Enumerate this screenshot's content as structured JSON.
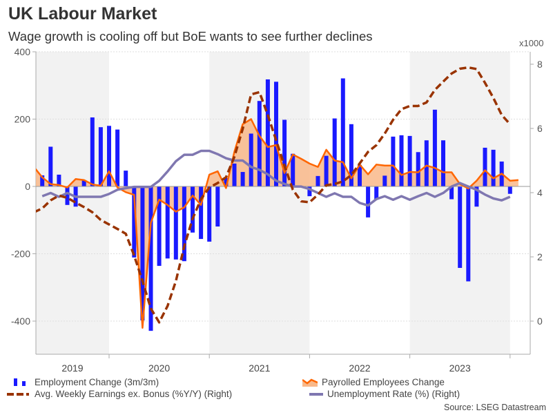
{
  "title": "UK Labour Market",
  "subtitle": "Wage growth is cooling off but BoE wants to see further declines",
  "source": "Source: LSEG Datastream",
  "colors": {
    "employment": "#1a1aff",
    "payrolled_line": "#ff6600",
    "payrolled_fill": "#f9b98a",
    "earnings": "#993300",
    "unemployment": "#7f77b0",
    "shade": "#f2f2f2"
  },
  "chart_data": {
    "type": "bar+line",
    "right_axis_unit": "x1000",
    "left_yticks": [
      400,
      200,
      0,
      -200,
      -400
    ],
    "left_ylim": [
      -490,
      400
    ],
    "right_yticks": [
      8,
      6,
      4,
      2,
      0
    ],
    "right_ylim": [
      -0.95,
      8.4
    ],
    "year_labels": [
      "2019",
      "2020",
      "2021",
      "2022",
      "2023"
    ],
    "grid": true,
    "legend_position": "bottom",
    "x": [
      "2019-04",
      "2019-05",
      "2019-06",
      "2019-07",
      "2019-08",
      "2019-09",
      "2019-10",
      "2019-11",
      "2019-12",
      "2020-01",
      "2020-02",
      "2020-03",
      "2020-04",
      "2020-05",
      "2020-06",
      "2020-07",
      "2020-08",
      "2020-09",
      "2020-10",
      "2020-11",
      "2020-12",
      "2021-01",
      "2021-02",
      "2021-03",
      "2021-04",
      "2021-05",
      "2021-06",
      "2021-07",
      "2021-08",
      "2021-09",
      "2021-10",
      "2021-11",
      "2021-12",
      "2022-01",
      "2022-02",
      "2022-03",
      "2022-04",
      "2022-05",
      "2022-06",
      "2022-07",
      "2022-08",
      "2022-09",
      "2022-10",
      "2022-11",
      "2022-12",
      "2023-01",
      "2023-02",
      "2023-03",
      "2023-04",
      "2023-05",
      "2023-06",
      "2023-07",
      "2023-08",
      "2023-09",
      "2023-10",
      "2023-11",
      "2023-12",
      "2024-01",
      "2024-02"
    ],
    "series": [
      {
        "name": "Employment Change (3m/3m)",
        "type": "bar",
        "axis": "left",
        "values": [
          null,
          33,
          118,
          35,
          -55,
          -60,
          19,
          205,
          176,
          180,
          169,
          47,
          -211,
          -398,
          -429,
          -236,
          -214,
          -217,
          -222,
          -137,
          -156,
          -164,
          -119,
          25,
          68,
          43,
          157,
          254,
          318,
          311,
          198,
          97,
          0,
          -29,
          31,
          91,
          202,
          321,
          185,
          64,
          -92,
          -38,
          32,
          148,
          152,
          150,
          102,
          137,
          228,
          137,
          -38,
          -242,
          -282,
          -60,
          115,
          109,
          74,
          -22,
          null
        ]
      },
      {
        "name": "Payrolled Employees Change",
        "type": "area",
        "axis": "left",
        "values": [
          58,
          27,
          7,
          4,
          -3,
          22,
          19,
          6,
          2,
          45,
          -3,
          -17,
          -25,
          -420,
          -108,
          -39,
          -55,
          -75,
          -62,
          -27,
          -55,
          35,
          45,
          -5,
          103,
          185,
          200,
          150,
          117,
          123,
          40,
          95,
          82,
          68,
          58,
          109,
          77,
          72,
          24,
          65,
          36,
          65,
          62,
          62,
          34,
          43,
          42,
          62,
          55,
          42,
          42,
          7,
          -6,
          17,
          48,
          24,
          38,
          17,
          19
        ]
      },
      {
        "name": "Avg. Weekly Earnings ex. Bonus (%Y/Y) (Right)",
        "type": "line",
        "axis": "right",
        "values": [
          3.39,
          3.51,
          3.76,
          3.91,
          3.84,
          3.69,
          3.55,
          3.39,
          3.15,
          3.01,
          2.87,
          2.72,
          2.04,
          1.25,
          0.39,
          -0.04,
          0.47,
          1.25,
          2.33,
          3.19,
          3.8,
          4.16,
          4.3,
          4.48,
          5.12,
          5.99,
          7.06,
          7.13,
          6.42,
          5.63,
          4.84,
          4.09,
          3.73,
          3.7,
          3.94,
          4.23,
          4.27,
          4.35,
          4.55,
          4.91,
          5.27,
          5.48,
          5.84,
          6.27,
          6.6,
          6.7,
          6.7,
          6.81,
          7.2,
          7.46,
          7.71,
          7.86,
          7.9,
          7.85,
          7.42,
          6.95,
          6.42,
          6.13,
          null
        ]
      },
      {
        "name": "Unemployment Rate (%) (Right)",
        "type": "line",
        "axis": "right",
        "values": [
          null,
          3.89,
          3.99,
          3.87,
          3.99,
          3.87,
          3.87,
          3.87,
          3.87,
          3.96,
          4.09,
          4.14,
          4.18,
          4.18,
          4.18,
          4.37,
          4.66,
          4.98,
          5.18,
          5.18,
          5.3,
          5.3,
          5.2,
          5.07,
          5.0,
          5.0,
          4.8,
          4.71,
          4.57,
          4.37,
          4.27,
          4.19,
          4.19,
          4.11,
          3.99,
          3.87,
          3.98,
          3.87,
          3.87,
          3.68,
          3.6,
          3.8,
          3.89,
          3.78,
          3.89,
          3.78,
          3.89,
          3.99,
          3.87,
          3.99,
          4.19,
          4.3,
          4.19,
          4.09,
          3.94,
          3.82,
          3.76,
          3.87,
          null
        ]
      }
    ]
  },
  "legend": {
    "employment": "Employment Change (3m/3m)",
    "payrolled": "Payrolled Employees Change",
    "earnings": "Avg. Weekly Earnings ex. Bonus (%Y/Y) (Right)",
    "unemployment": "Unemployment Rate (%) (Right)"
  }
}
